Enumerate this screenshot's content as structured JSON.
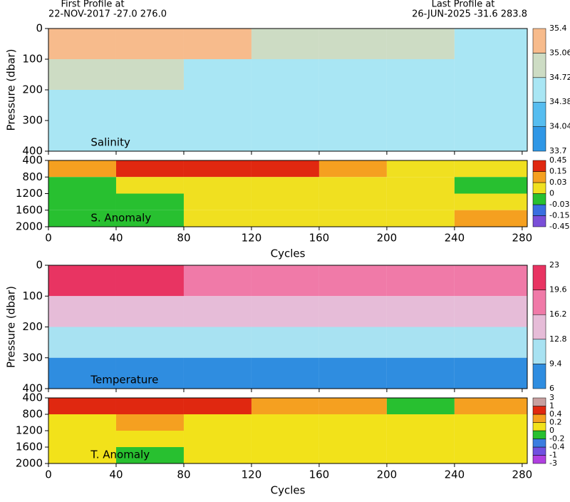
{
  "header": {
    "first_title": "First Profile at",
    "first_text": "22-NOV-2017   -27.0  276.0",
    "last_title": "Last Profile at",
    "last_text": "26-JUN-2025   -31.6  283.8"
  },
  "chart_data": [
    {
      "type": "heatmap",
      "label": "Salinity",
      "ylabel": "Pressure (dbar)",
      "xlim": [
        0,
        283
      ],
      "xticks": [
        0,
        40,
        80,
        120,
        160,
        200,
        240,
        280
      ],
      "ylim": [
        400,
        0
      ],
      "yticks": [
        0,
        100,
        200,
        300,
        400
      ],
      "x_edges": [
        0,
        40,
        80,
        120,
        160,
        200,
        240,
        283
      ],
      "y_edges": [
        0,
        100,
        200,
        300,
        400
      ],
      "z": [
        [
          35.2,
          35.2,
          35.1,
          34.9,
          34.8,
          34.8,
          34.7
        ],
        [
          34.9,
          34.8,
          34.6,
          34.6,
          34.6,
          34.5,
          34.5
        ],
        [
          34.5,
          34.5,
          34.5,
          34.5,
          34.5,
          34.5,
          34.5
        ],
        [
          34.4,
          34.5,
          34.45,
          34.45,
          34.45,
          34.45,
          34.45
        ]
      ],
      "levels": [
        33.7,
        34.04,
        34.38,
        34.72,
        35.06,
        35.4
      ],
      "colors": [
        "#2f97e6",
        "#56bdf0",
        "#a9e6f4",
        "#cddcc4",
        "#f7bb8c"
      ]
    },
    {
      "type": "heatmap",
      "label": "S. Anomaly",
      "xlabel": "Cycles",
      "xlim": [
        0,
        283
      ],
      "xticks": [
        0,
        40,
        80,
        120,
        160,
        200,
        240,
        280
      ],
      "ylim": [
        2000,
        400
      ],
      "yticks": [
        400,
        800,
        1200,
        1600,
        2000
      ],
      "x_edges": [
        0,
        40,
        80,
        120,
        160,
        200,
        240,
        283
      ],
      "y_edges": [
        400,
        800,
        1200,
        1600,
        2000
      ],
      "z": [
        [
          0.1,
          0.2,
          0.2,
          0.2,
          0.1,
          0.02,
          0.02
        ],
        [
          -0.02,
          0.02,
          0.02,
          0.02,
          0.02,
          0.01,
          -0.02
        ],
        [
          -0.02,
          -0.01,
          0.02,
          0.02,
          0.02,
          0.02,
          0.02
        ],
        [
          -0.02,
          -0.02,
          0.01,
          0.01,
          0.01,
          0.02,
          0.05
        ]
      ],
      "levels": [
        -0.45,
        -0.15,
        -0.03,
        0,
        0.03,
        0.15,
        0.45
      ],
      "colors": [
        "#7a4fd8",
        "#3a6fe0",
        "#28c030",
        "#f0e020",
        "#f5a020",
        "#e02810"
      ]
    },
    {
      "type": "heatmap",
      "label": "Temperature",
      "ylabel": "Pressure (dbar)",
      "xlim": [
        0,
        283
      ],
      "xticks": [
        0,
        40,
        80,
        120,
        160,
        200,
        240,
        280
      ],
      "ylim": [
        400,
        0
      ],
      "yticks": [
        0,
        100,
        200,
        300,
        400
      ],
      "x_edges": [
        0,
        40,
        80,
        120,
        160,
        200,
        240,
        283
      ],
      "y_edges": [
        0,
        100,
        200,
        300,
        400
      ],
      "z": [
        [
          20,
          20,
          19,
          19,
          18,
          18,
          17
        ],
        [
          15,
          14,
          15,
          14,
          13,
          14,
          13
        ],
        [
          12,
          12,
          11,
          11,
          11,
          11,
          11
        ],
        [
          9,
          9,
          9,
          8.5,
          9,
          9,
          9
        ]
      ],
      "levels": [
        6,
        9.4,
        12.8,
        16.2,
        19.6,
        23
      ],
      "colors": [
        "#2f8de0",
        "#a8e2f2",
        "#e6bcd8",
        "#f07aa8",
        "#e83462"
      ]
    },
    {
      "type": "heatmap",
      "label": "T. Anomaly",
      "xlabel": "Cycles",
      "xlim": [
        0,
        283
      ],
      "xticks": [
        0,
        40,
        80,
        120,
        160,
        200,
        240,
        280
      ],
      "ylim": [
        2000,
        400
      ],
      "yticks": [
        400,
        800,
        1200,
        1600,
        2000
      ],
      "x_edges": [
        0,
        40,
        80,
        120,
        160,
        200,
        240,
        283
      ],
      "y_edges": [
        400,
        800,
        1200,
        1600,
        2000
      ],
      "z": [
        [
          0.5,
          0.5,
          0.5,
          0.3,
          0.3,
          -0.1,
          0.2
        ],
        [
          0.1,
          0.2,
          0.15,
          0.1,
          0.1,
          0.05,
          0.1
        ],
        [
          0.05,
          0.1,
          0.05,
          0.05,
          0.1,
          0.1,
          0.1
        ],
        [
          0.05,
          -0.1,
          0.1,
          0.05,
          0.05,
          0.1,
          0.1
        ]
      ],
      "levels": [
        -3,
        -1,
        -0.4,
        -0.2,
        0,
        0.2,
        0.4,
        1,
        3
      ],
      "colors": [
        "#b040e0",
        "#7050e0",
        "#3b7de0",
        "#28c030",
        "#f2e21a",
        "#f5a020",
        "#e02810",
        "#c8a0a0"
      ]
    }
  ]
}
